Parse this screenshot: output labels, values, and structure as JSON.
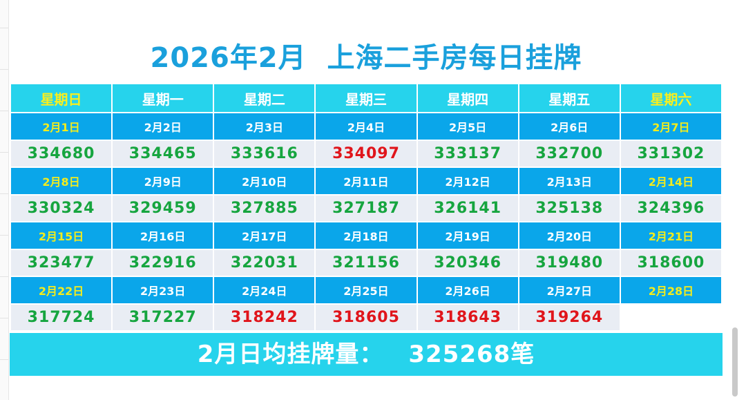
{
  "title": "2026年2月  上海二手房每日挂牌",
  "weekdays": [
    "星期日",
    "星期一",
    "星期二",
    "星期三",
    "星期四",
    "星期五",
    "星期六"
  ],
  "weeks": [
    {
      "dates": [
        "2月1日",
        "2月2日",
        "2月3日",
        "2月4日",
        "2月5日",
        "2月6日",
        "2月7日"
      ],
      "values": [
        "334680",
        "334465",
        "333616",
        "334097",
        "333137",
        "332700",
        "331302"
      ]
    },
    {
      "dates": [
        "2月8日",
        "2月9日",
        "2月10日",
        "2月11日",
        "2月12日",
        "2月13日",
        "2月14日"
      ],
      "values": [
        "330324",
        "329459",
        "327885",
        "327187",
        "326141",
        "325138",
        "324396"
      ]
    },
    {
      "dates": [
        "2月15日",
        "2月16日",
        "2月17日",
        "2月18日",
        "2月19日",
        "2月20日",
        "2月21日"
      ],
      "values": [
        "323477",
        "322916",
        "322031",
        "321156",
        "320346",
        "319480",
        "318600"
      ]
    },
    {
      "dates": [
        "2月22日",
        "2月23日",
        "2月24日",
        "2月25日",
        "2月26日",
        "2月27日",
        "2月28日"
      ],
      "values": [
        "317724",
        "317227",
        "318242",
        "318605",
        "318643",
        "319264",
        ""
      ]
    }
  ],
  "summary": {
    "label": "2月日均挂牌量：",
    "value": "325268笔"
  },
  "colors": {
    "title": "#1aa0dc",
    "header_bg": "#26d3ec",
    "date_bg": "#0aa6ea",
    "weekend_text": "#f4ec1c",
    "value_bg": "#e9edf4",
    "value_text": "#16a53f",
    "value_up_text": "#e0151b"
  }
}
